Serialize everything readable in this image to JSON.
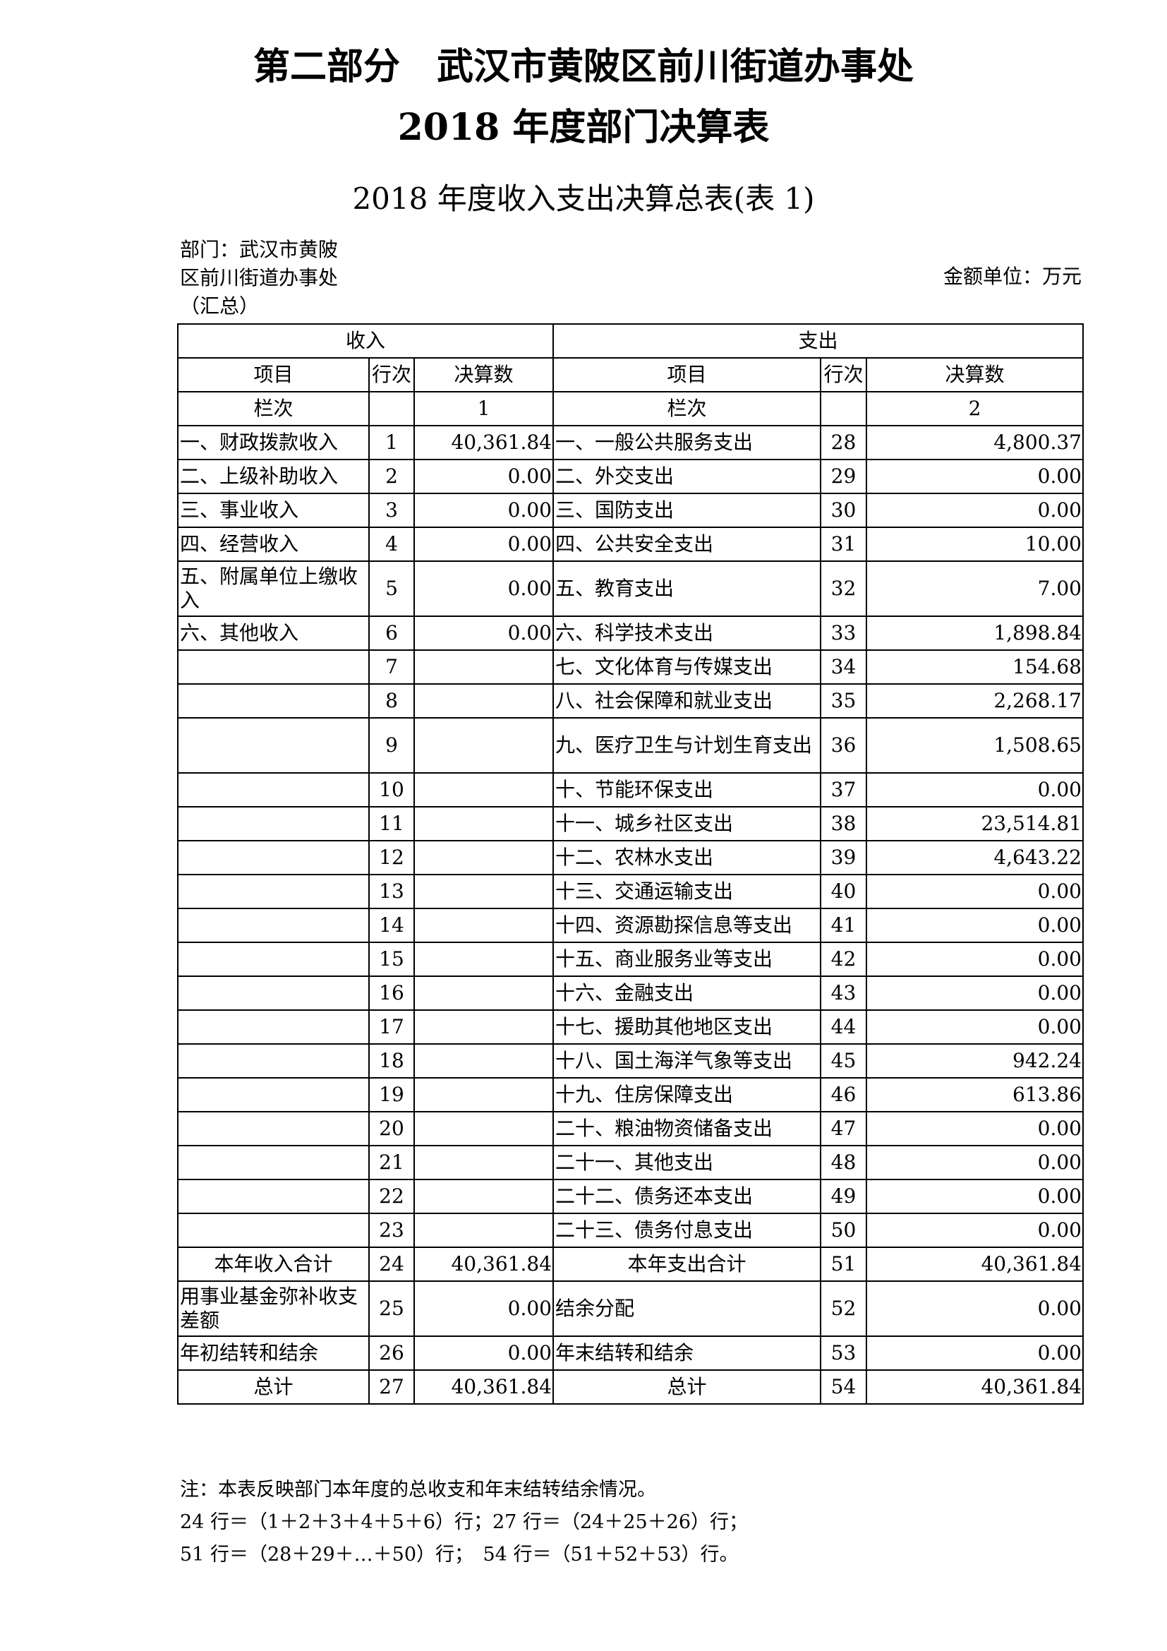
{
  "title": {
    "line1": "第二部分　武汉市黄陂区前川街道办事处",
    "line2": "2018 年度部门决算表"
  },
  "subtitle": "2018 年度收入支出决算总表(表 1)",
  "meta": {
    "department_lines": [
      "部门：武汉市黄陂",
      "区前川街道办事处",
      "（汇总）"
    ],
    "unit": "金额单位：万元"
  },
  "table": {
    "group_headers": {
      "income": "收入",
      "expense": "支出"
    },
    "column_headers": {
      "item": "项目",
      "line": "行次",
      "amount": "决算数"
    },
    "column_index_row": {
      "label": "栏次",
      "income_col": "1",
      "expense_col": "2"
    },
    "rows": [
      {
        "in_item": "一、财政拨款收入",
        "in_line": "1",
        "in_amt": "40,361.84",
        "ex_item": "一、一般公共服务支出",
        "ex_line": "28",
        "ex_amt": "4,800.37"
      },
      {
        "in_item": "二、上级补助收入",
        "in_line": "2",
        "in_amt": "0.00",
        "ex_item": "二、外交支出",
        "ex_line": "29",
        "ex_amt": "0.00"
      },
      {
        "in_item": "三、事业收入",
        "in_line": "3",
        "in_amt": "0.00",
        "ex_item": "三、国防支出",
        "ex_line": "30",
        "ex_amt": "0.00"
      },
      {
        "in_item": "四、经营收入",
        "in_line": "4",
        "in_amt": "0.00",
        "ex_item": "四、公共安全支出",
        "ex_line": "31",
        "ex_amt": "10.00"
      },
      {
        "in_item": "五、附属单位上缴收入",
        "in_line": "5",
        "in_amt": "0.00",
        "ex_item": "五、教育支出",
        "ex_line": "32",
        "ex_amt": "7.00",
        "tall": true
      },
      {
        "in_item": "六、其他收入",
        "in_line": "6",
        "in_amt": "0.00",
        "ex_item": "六、科学技术支出",
        "ex_line": "33",
        "ex_amt": "1,898.84"
      },
      {
        "in_item": "",
        "in_line": "7",
        "in_amt": "",
        "ex_item": "七、文化体育与传媒支出",
        "ex_line": "34",
        "ex_amt": "154.68"
      },
      {
        "in_item": "",
        "in_line": "8",
        "in_amt": "",
        "ex_item": "八、社会保障和就业支出",
        "ex_line": "35",
        "ex_amt": "2,268.17"
      },
      {
        "in_item": "",
        "in_line": "9",
        "in_amt": "",
        "ex_item": "九、医疗卫生与计划生育支出",
        "ex_line": "36",
        "ex_amt": "1,508.65",
        "tall": true
      },
      {
        "in_item": "",
        "in_line": "10",
        "in_amt": "",
        "ex_item": "十、节能环保支出",
        "ex_line": "37",
        "ex_amt": "0.00"
      },
      {
        "in_item": "",
        "in_line": "11",
        "in_amt": "",
        "ex_item": "十一、城乡社区支出",
        "ex_line": "38",
        "ex_amt": "23,514.81"
      },
      {
        "in_item": "",
        "in_line": "12",
        "in_amt": "",
        "ex_item": "十二、农林水支出",
        "ex_line": "39",
        "ex_amt": "4,643.22"
      },
      {
        "in_item": "",
        "in_line": "13",
        "in_amt": "",
        "ex_item": "十三、交通运输支出",
        "ex_line": "40",
        "ex_amt": "0.00"
      },
      {
        "in_item": "",
        "in_line": "14",
        "in_amt": "",
        "ex_item": "十四、资源勘探信息等支出",
        "ex_line": "41",
        "ex_amt": "0.00"
      },
      {
        "in_item": "",
        "in_line": "15",
        "in_amt": "",
        "ex_item": "十五、商业服务业等支出",
        "ex_line": "42",
        "ex_amt": "0.00"
      },
      {
        "in_item": "",
        "in_line": "16",
        "in_amt": "",
        "ex_item": "十六、金融支出",
        "ex_line": "43",
        "ex_amt": "0.00"
      },
      {
        "in_item": "",
        "in_line": "17",
        "in_amt": "",
        "ex_item": "十七、援助其他地区支出",
        "ex_line": "44",
        "ex_amt": "0.00"
      },
      {
        "in_item": "",
        "in_line": "18",
        "in_amt": "",
        "ex_item": "十八、国土海洋气象等支出",
        "ex_line": "45",
        "ex_amt": "942.24"
      },
      {
        "in_item": "",
        "in_line": "19",
        "in_amt": "",
        "ex_item": "十九、住房保障支出",
        "ex_line": "46",
        "ex_amt": "613.86"
      },
      {
        "in_item": "",
        "in_line": "20",
        "in_amt": "",
        "ex_item": "二十、粮油物资储备支出",
        "ex_line": "47",
        "ex_amt": "0.00"
      },
      {
        "in_item": "",
        "in_line": "21",
        "in_amt": "",
        "ex_item": "二十一、其他支出",
        "ex_line": "48",
        "ex_amt": "0.00"
      },
      {
        "in_item": "",
        "in_line": "22",
        "in_amt": "",
        "ex_item": "二十二、债务还本支出",
        "ex_line": "49",
        "ex_amt": "0.00"
      },
      {
        "in_item": "",
        "in_line": "23",
        "in_amt": "",
        "ex_item": "二十三、债务付息支出",
        "ex_line": "50",
        "ex_amt": "0.00"
      },
      {
        "in_item": "本年收入合计",
        "in_line": "24",
        "in_amt": "40,361.84",
        "ex_item": "本年支出合计",
        "ex_line": "51",
        "ex_amt": "40,361.84",
        "center": true
      },
      {
        "in_item": "用事业基金弥补收支差额",
        "in_line": "25",
        "in_amt": "0.00",
        "ex_item": "结余分配",
        "ex_line": "52",
        "ex_amt": "0.00",
        "tall": true
      },
      {
        "in_item": "年初结转和结余",
        "in_line": "26",
        "in_amt": "0.00",
        "ex_item": "年末结转和结余",
        "ex_line": "53",
        "ex_amt": "0.00"
      },
      {
        "in_item": "总计",
        "in_line": "27",
        "in_amt": "40,361.84",
        "ex_item": "总计",
        "ex_line": "54",
        "ex_amt": "40,361.84",
        "center": true
      }
    ]
  },
  "notes": [
    "注：本表反映部门本年度的总收支和年末结转结余情况。",
    "24 行＝（1＋2＋3＋4＋5＋6）行；27 行＝（24＋25＋26）行；",
    "51 行＝（28＋29＋…＋50）行；　54 行＝（51＋52＋53）行。"
  ]
}
